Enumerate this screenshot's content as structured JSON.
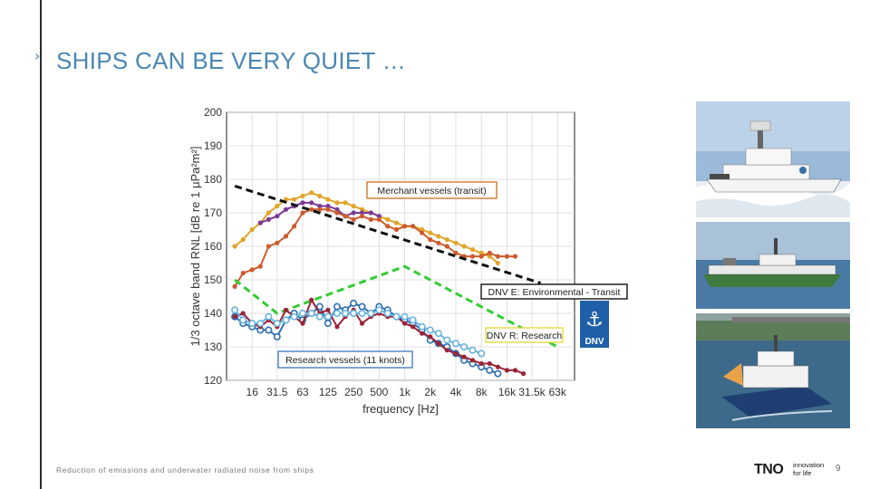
{
  "slide": {
    "title_mark": "›",
    "title": "SHIPS CAN BE VERY QUIET …",
    "footer": "Reduction of emissions and underwater radiated noise from ships",
    "page_number": "9",
    "logo": {
      "mark": "TNO",
      "tagline_1": "innovation",
      "tagline_2": "for life"
    },
    "colors": {
      "title": "#4a87b3"
    }
  },
  "badges": [
    {
      "name": "dnv-e-emblem",
      "icon": "lighthouse-pair-icon",
      "text": "DNV",
      "color": "#1f5fa8"
    }
  ],
  "photos": [
    {
      "icon": "research-ship-in-ice-photo"
    },
    {
      "icon": "research-ship-at-sea-photo"
    },
    {
      "icon": "catamaran-research-ship-photo"
    }
  ],
  "chart_data": {
    "type": "line",
    "xlabel": "frequency [Hz]",
    "ylabel": "1/3 octave band RNL [dB re 1 μPa²m²]",
    "x_scale": "log",
    "x_ticks": [
      {
        "value": 16,
        "label": "16"
      },
      {
        "value": 31.5,
        "label": "31.5"
      },
      {
        "value": 63,
        "label": "63"
      },
      {
        "value": 125,
        "label": "125"
      },
      {
        "value": 250,
        "label": "250"
      },
      {
        "value": 500,
        "label": "500"
      },
      {
        "value": 1000,
        "label": "1k"
      },
      {
        "value": 2000,
        "label": "2k"
      },
      {
        "value": 4000,
        "label": "4k"
      },
      {
        "value": 8000,
        "label": "8k"
      },
      {
        "value": 16000,
        "label": "16k"
      },
      {
        "value": 31500,
        "label": "31.5k"
      },
      {
        "value": 63000,
        "label": "63k"
      }
    ],
    "xlim": [
      8,
      100000
    ],
    "ylim": [
      120,
      200
    ],
    "y_ticks": [
      120,
      130,
      140,
      150,
      160,
      170,
      180,
      190,
      200
    ],
    "grid": true,
    "series": [
      {
        "style": "markers",
        "color": "#e0a52b",
        "points": [
          [
            10,
            160
          ],
          [
            12.5,
            162
          ],
          [
            16,
            165
          ],
          [
            20,
            167
          ],
          [
            25,
            170
          ],
          [
            31.5,
            172
          ],
          [
            40,
            174
          ],
          [
            50,
            174
          ],
          [
            63,
            175
          ],
          [
            80,
            176
          ],
          [
            100,
            175
          ],
          [
            125,
            174
          ],
          [
            160,
            173
          ],
          [
            200,
            173
          ],
          [
            250,
            172
          ],
          [
            315,
            171
          ],
          [
            400,
            170
          ],
          [
            500,
            169
          ],
          [
            630,
            168
          ],
          [
            800,
            167
          ],
          [
            1000,
            166
          ],
          [
            1250,
            166
          ],
          [
            1600,
            165
          ],
          [
            2000,
            164
          ],
          [
            2500,
            163
          ],
          [
            3150,
            162
          ],
          [
            4000,
            161
          ],
          [
            5000,
            160
          ],
          [
            6300,
            159
          ],
          [
            8000,
            158
          ],
          [
            10000,
            157
          ],
          [
            12500,
            155
          ]
        ]
      },
      {
        "style": "markers",
        "color": "#7a3a96",
        "points": [
          [
            20,
            167
          ],
          [
            25,
            168
          ],
          [
            31.5,
            169
          ],
          [
            40,
            171
          ],
          [
            50,
            172
          ],
          [
            63,
            173
          ],
          [
            80,
            173
          ],
          [
            100,
            172
          ],
          [
            125,
            172
          ],
          [
            160,
            171
          ],
          [
            200,
            169
          ],
          [
            250,
            170
          ],
          [
            315,
            170
          ],
          [
            400,
            170
          ],
          [
            500,
            169
          ]
        ]
      },
      {
        "style": "markers",
        "color": "#cc5b2e",
        "points": [
          [
            10,
            148
          ],
          [
            12.5,
            152
          ],
          [
            16,
            153
          ],
          [
            20,
            154
          ],
          [
            25,
            160
          ],
          [
            31.5,
            161
          ],
          [
            40,
            163
          ],
          [
            50,
            166
          ],
          [
            63,
            170
          ],
          [
            80,
            171
          ],
          [
            100,
            171
          ],
          [
            125,
            171
          ],
          [
            160,
            170
          ],
          [
            200,
            169
          ],
          [
            250,
            168
          ],
          [
            315,
            169
          ],
          [
            400,
            168
          ],
          [
            500,
            168
          ],
          [
            630,
            166
          ],
          [
            800,
            165
          ],
          [
            1000,
            166
          ],
          [
            1250,
            166
          ],
          [
            1600,
            164
          ],
          [
            2000,
            162
          ],
          [
            2500,
            161
          ],
          [
            3150,
            160
          ],
          [
            4000,
            158
          ],
          [
            5000,
            157
          ],
          [
            6300,
            157
          ],
          [
            8000,
            157
          ],
          [
            10000,
            158
          ],
          [
            12500,
            157
          ],
          [
            16000,
            157
          ],
          [
            20000,
            157
          ]
        ]
      },
      {
        "style": "dashed",
        "color": "#111111",
        "points": [
          [
            10,
            178
          ],
          [
            40000,
            149
          ]
        ]
      },
      {
        "style": "dashed",
        "color": "#33cc33",
        "points": [
          [
            10,
            150
          ],
          [
            31.5,
            140
          ],
          [
            1000,
            154
          ],
          [
            63000,
            130
          ]
        ]
      },
      {
        "style": "markers-open",
        "color": "#2e6fb0",
        "points": [
          [
            10,
            139
          ],
          [
            12.5,
            137
          ],
          [
            16,
            136
          ],
          [
            20,
            135
          ],
          [
            25,
            135
          ],
          [
            31.5,
            133
          ],
          [
            40,
            138
          ],
          [
            50,
            140
          ],
          [
            63,
            138
          ],
          [
            80,
            140
          ],
          [
            100,
            142
          ],
          [
            125,
            137
          ],
          [
            160,
            142
          ],
          [
            200,
            141
          ],
          [
            250,
            143
          ],
          [
            315,
            142
          ],
          [
            400,
            140
          ],
          [
            500,
            142
          ],
          [
            630,
            141
          ],
          [
            800,
            139
          ],
          [
            1000,
            138
          ],
          [
            1250,
            137
          ],
          [
            1600,
            135
          ],
          [
            2000,
            132
          ],
          [
            2500,
            131
          ],
          [
            3150,
            130
          ],
          [
            4000,
            128
          ],
          [
            5000,
            126
          ],
          [
            6300,
            125
          ],
          [
            8000,
            124
          ],
          [
            10000,
            123
          ],
          [
            12500,
            122
          ]
        ]
      },
      {
        "style": "markers",
        "color": "#9b2338",
        "points": [
          [
            10,
            139
          ],
          [
            12.5,
            140
          ],
          [
            16,
            137
          ],
          [
            20,
            136
          ],
          [
            25,
            138
          ],
          [
            31.5,
            136
          ],
          [
            40,
            141
          ],
          [
            50,
            139
          ],
          [
            63,
            137
          ],
          [
            80,
            144
          ],
          [
            100,
            140
          ],
          [
            125,
            141
          ],
          [
            160,
            136
          ],
          [
            200,
            139
          ],
          [
            250,
            141
          ],
          [
            315,
            137
          ],
          [
            400,
            139
          ],
          [
            500,
            140
          ],
          [
            630,
            139
          ],
          [
            800,
            139
          ],
          [
            1000,
            137
          ],
          [
            1250,
            136
          ],
          [
            1600,
            134
          ],
          [
            2000,
            133
          ],
          [
            2500,
            131
          ],
          [
            3150,
            129
          ],
          [
            4000,
            128
          ],
          [
            5000,
            127
          ],
          [
            6300,
            126
          ],
          [
            8000,
            125
          ],
          [
            10000,
            125
          ],
          [
            12500,
            124
          ],
          [
            16000,
            123
          ],
          [
            20000,
            123
          ],
          [
            25000,
            122
          ]
        ]
      },
      {
        "style": "markers-open",
        "color": "#6ab4dc",
        "points": [
          [
            10,
            141
          ],
          [
            12.5,
            138
          ],
          [
            16,
            137
          ],
          [
            20,
            137
          ],
          [
            25,
            139
          ],
          [
            31.5,
            137
          ],
          [
            40,
            138
          ],
          [
            50,
            139
          ],
          [
            63,
            140
          ],
          [
            80,
            140
          ],
          [
            100,
            139
          ],
          [
            125,
            139
          ],
          [
            160,
            140
          ],
          [
            200,
            140
          ],
          [
            250,
            140
          ],
          [
            315,
            140
          ],
          [
            400,
            140
          ],
          [
            500,
            141
          ],
          [
            630,
            140
          ],
          [
            800,
            139
          ],
          [
            1000,
            139
          ],
          [
            1250,
            138
          ],
          [
            1600,
            136
          ],
          [
            2000,
            135
          ],
          [
            2500,
            134
          ],
          [
            3150,
            132
          ],
          [
            4000,
            131
          ],
          [
            5000,
            130
          ],
          [
            6300,
            129
          ],
          [
            8000,
            128
          ]
        ]
      }
    ],
    "annotations": [
      {
        "name": "merchant-label",
        "text": "Merchant vessels (transit)",
        "border": "#d07a2a"
      },
      {
        "name": "dnv-e-label",
        "text": "DNV E: Environmental - Transit",
        "border": "#111111"
      },
      {
        "name": "dnv-r-label",
        "text": "DNV R: Research",
        "border": "#e6dc3c"
      },
      {
        "name": "research-label",
        "text": "Research vessels (11 knots)",
        "border": "#4a7fbf"
      }
    ]
  }
}
